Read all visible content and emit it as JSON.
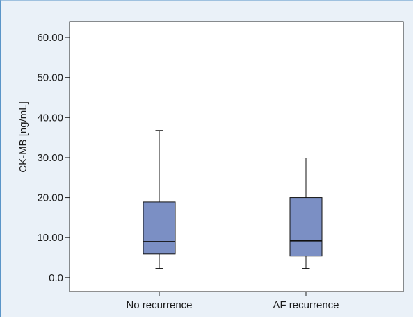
{
  "chart_data": {
    "type": "box",
    "ylabel": "CK-MB [ng/mL]",
    "xlabel": "",
    "ylim": [
      -3.5,
      64
    ],
    "yticks": [
      0.0,
      10.0,
      20.0,
      30.0,
      40.0,
      50.0,
      60.0
    ],
    "ytick_labels": [
      "0.0",
      "10.00",
      "20.00",
      "30.00",
      "40.00",
      "50.00",
      "60.00"
    ],
    "categories": [
      "No recurrence",
      "AF recurrence"
    ],
    "boxes": [
      {
        "category": "No recurrence",
        "whisker_low": 2.3,
        "q1": 5.9,
        "median": 9.0,
        "q3": 18.9,
        "whisker_high": 36.8
      },
      {
        "category": "AF recurrence",
        "whisker_low": 2.3,
        "q1": 5.4,
        "median": 9.2,
        "q3": 20.0,
        "whisker_high": 29.9
      }
    ],
    "box_color": "#7b8fc4",
    "grid": false
  }
}
